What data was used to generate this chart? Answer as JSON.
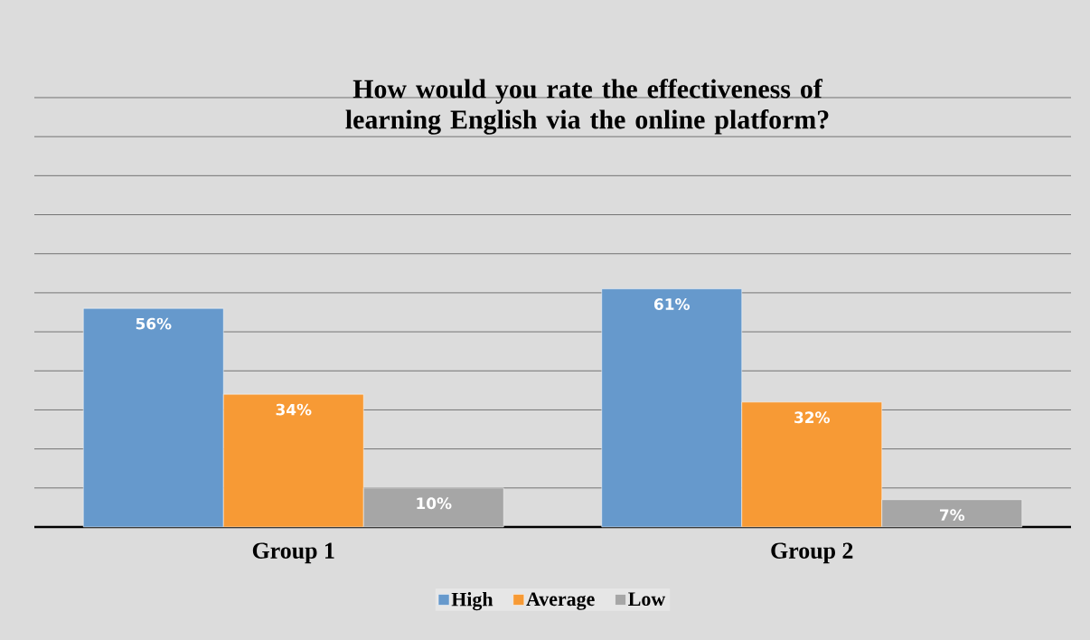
{
  "chart_data": {
    "type": "bar",
    "title": "How would you rate the effectiveness of learning English via the online platform?",
    "categories": [
      "Group 1",
      "Group 2"
    ],
    "series": [
      {
        "name": "High",
        "color": "#6699cc",
        "values": [
          56,
          61
        ],
        "value_labels": [
          "56%",
          "61%"
        ]
      },
      {
        "name": "Average",
        "color": "#f79a35",
        "values": [
          34,
          32
        ],
        "value_labels": [
          "34%",
          "32%"
        ]
      },
      {
        "name": "Low",
        "color": "#a6a6a6",
        "values": [
          10,
          7
        ],
        "value_labels": [
          "10%",
          "7%"
        ]
      }
    ],
    "ylim": [
      0,
      110
    ],
    "yticks": [
      {
        "value": 10,
        "label": null
      },
      {
        "value": 20,
        "label": null
      },
      {
        "value": 30,
        "label": null
      },
      {
        "value": 40,
        "label": null
      },
      {
        "value": 50,
        "label": null
      },
      {
        "value": 60,
        "label": null
      },
      {
        "value": 70,
        "label": null
      },
      {
        "value": 80,
        "label": null
      },
      {
        "value": 90,
        "label": null
      },
      {
        "value": 100,
        "label": null
      },
      {
        "value": 110,
        "label": null
      }
    ],
    "tick_labels": "x",
    "grid": "y",
    "legend": "bottom"
  }
}
